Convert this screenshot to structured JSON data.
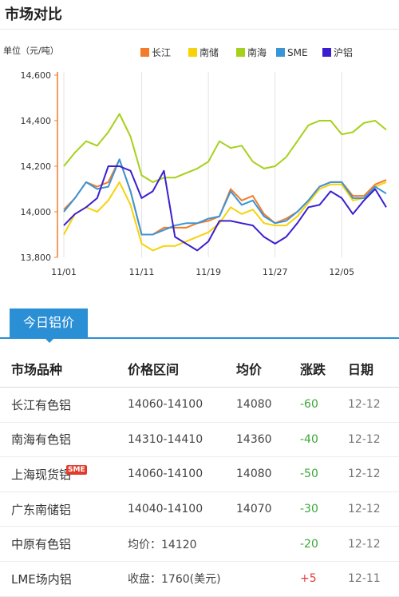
{
  "header": {
    "title": "市场对比"
  },
  "chart_data": {
    "type": "line",
    "ylabel": "单位（元/吨）",
    "ylim": [
      13800,
      14600
    ],
    "yticks": [
      13800,
      14000,
      14200,
      14400,
      14600
    ],
    "ytick_labels": [
      "13,800",
      "14,000",
      "14,200",
      "14,400",
      "14,600"
    ],
    "xtick_labels": [
      "11/01",
      "11/11",
      "11/19",
      "11/27",
      "12/05"
    ],
    "grid": "vertical",
    "legend": "top",
    "n_points": 30,
    "xtick_index": [
      0,
      7,
      13,
      19,
      25
    ],
    "series": [
      {
        "name": "长江",
        "color": "#f27c2a",
        "values": [
          14010,
          14060,
          14130,
          14110,
          14130,
          14230,
          14090,
          13900,
          13900,
          13930,
          13930,
          13930,
          13950,
          13960,
          13980,
          14100,
          14050,
          14070,
          13990,
          13950,
          13970,
          14000,
          14050,
          14110,
          14130,
          14130,
          14070,
          14070,
          14120,
          14140
        ]
      },
      {
        "name": "南储",
        "color": "#f7d20a",
        "values": [
          13900,
          13990,
          14020,
          14000,
          14050,
          14130,
          14030,
          13860,
          13830,
          13850,
          13850,
          13870,
          13890,
          13910,
          13950,
          14020,
          13990,
          14010,
          13950,
          13940,
          13940,
          13980,
          14040,
          14100,
          14120,
          14120,
          14050,
          14060,
          14110,
          14130
        ]
      },
      {
        "name": "南海",
        "color": "#a5d11a",
        "values": [
          14200,
          14260,
          14310,
          14290,
          14350,
          14430,
          14330,
          14160,
          14130,
          14150,
          14150,
          14170,
          14190,
          14220,
          14310,
          14280,
          14290,
          14220,
          14190,
          14200,
          14240,
          14310,
          14380,
          14400,
          14400,
          14340,
          14350,
          14390,
          14400,
          14360
        ]
      },
      {
        "name": "SME",
        "color": "#3a95d8",
        "values": [
          14000,
          14060,
          14130,
          14100,
          14110,
          14230,
          14090,
          13900,
          13900,
          13920,
          13940,
          13950,
          13950,
          13970,
          13980,
          14090,
          14030,
          14050,
          13980,
          13950,
          13960,
          14000,
          14050,
          14110,
          14130,
          14130,
          14060,
          14060,
          14110,
          14080
        ]
      },
      {
        "name": "沪铝",
        "color": "#3a1fcf",
        "values": [
          13940,
          13990,
          14020,
          14060,
          14200,
          14200,
          14180,
          14060,
          14090,
          14180,
          13890,
          13860,
          13830,
          13870,
          13960,
          13960,
          13950,
          13940,
          13890,
          13860,
          13890,
          13950,
          14020,
          14030,
          14090,
          14060,
          13990,
          14050,
          14100,
          14020
        ]
      }
    ]
  },
  "tab": {
    "label": "今日铝价"
  },
  "table": {
    "headers": [
      "市场品种",
      "价格区间",
      "均价",
      "涨跌",
      "日期"
    ],
    "rows": [
      {
        "market": "长江有色铝",
        "range": "14060-14100",
        "avg": "14080",
        "change": "-60",
        "date": "12-12",
        "dir": "down"
      },
      {
        "market": "南海有色铝",
        "range": "14310-14410",
        "avg": "14360",
        "change": "-40",
        "date": "12-12",
        "dir": "down"
      },
      {
        "market": "上海现货铝",
        "badge": "SME",
        "range": "14060-14100",
        "avg": "14080",
        "change": "-50",
        "date": "12-12",
        "dir": "down"
      },
      {
        "market": "广东南储铝",
        "range": "14040-14100",
        "avg": "14070",
        "change": "-30",
        "date": "12-12",
        "dir": "down"
      },
      {
        "market": "中原有色铝",
        "range": "均价：14120",
        "avg": "",
        "change": "-20",
        "date": "12-12",
        "dir": "down"
      },
      {
        "market": "LME场内铝",
        "range": "收盘：1760(美元)",
        "avg": "",
        "change": "+5",
        "date": "12-11",
        "dir": "up"
      }
    ]
  }
}
